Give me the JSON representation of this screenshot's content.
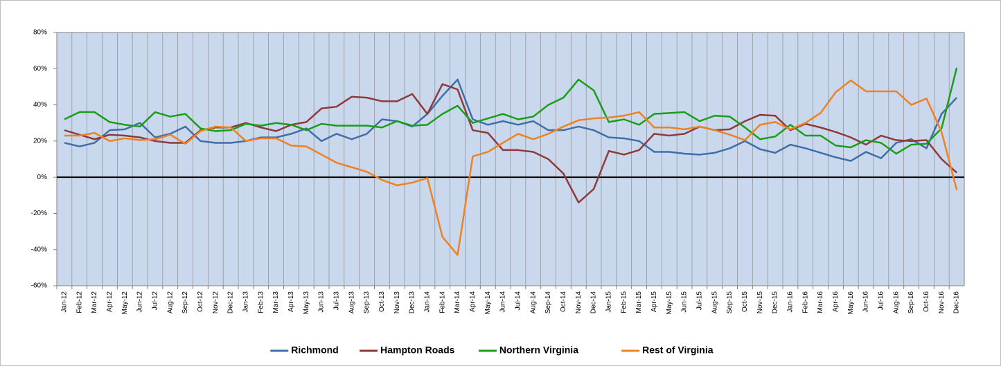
{
  "chart_data": {
    "type": "line",
    "categories": [
      "Jan-12",
      "Feb-12",
      "Mar-12",
      "Apr-12",
      "May-12",
      "Jun-12",
      "Jul-12",
      "Aug-12",
      "Sep-12",
      "Oct-12",
      "Nov-12",
      "Dec-12",
      "Jan-13",
      "Feb-13",
      "Mar-13",
      "Apr-13",
      "May-13",
      "Jun-13",
      "Jul-13",
      "Aug-13",
      "Sep-13",
      "Oct-13",
      "Nov-13",
      "Dec-13",
      "Jan-14",
      "Feb-14",
      "Mar-14",
      "Apr-14",
      "May-14",
      "Jun-14",
      "Jul-14",
      "Aug-14",
      "Sep-14",
      "Oct-14",
      "Nov-14",
      "Dec-14",
      "Jan-15",
      "Feb-15",
      "Mar-15",
      "Apr-15",
      "May-15",
      "Jun-15",
      "Jul-15",
      "Aug-15",
      "Sep-15",
      "Oct-15",
      "Nov-15",
      "Dec-15",
      "Jan-16",
      "Feb-16",
      "Mar-16",
      "Apr-16",
      "May-16",
      "Jun-16",
      "Jul-16",
      "Aug-16",
      "Sep-16",
      "Oct-16",
      "Nov-16",
      "Dec-16"
    ],
    "series": [
      {
        "name": "Richmond",
        "color": "#3f6ea8",
        "values": [
          19,
          17,
          19,
          26,
          26.5,
          30,
          22,
          24,
          28,
          20,
          19,
          19,
          20,
          22,
          22,
          24,
          27,
          20,
          24,
          21,
          24,
          32,
          31,
          28,
          35,
          45,
          54,
          32,
          29,
          31,
          29,
          31,
          26,
          26,
          28,
          26,
          22,
          21.5,
          20,
          14,
          14,
          13,
          12.5,
          13.5,
          16,
          20,
          15.5,
          13.5,
          18,
          16,
          13.5,
          11,
          9,
          14,
          10.5,
          19,
          21,
          16,
          35,
          44
        ]
      },
      {
        "name": "Hampton Roads",
        "color": "#8e3a3a",
        "values": [
          26,
          23.5,
          21,
          23.5,
          23,
          22,
          20,
          19,
          19,
          26,
          27.5,
          27.5,
          30,
          27.5,
          25.5,
          29,
          30.5,
          38,
          39,
          44.5,
          44,
          42,
          42,
          46,
          35,
          51.5,
          48.5,
          26,
          24.5,
          15,
          15,
          14,
          10,
          2,
          -14,
          -6.5,
          14.5,
          12.5,
          15,
          24,
          23,
          24,
          28,
          26,
          26.5,
          31,
          34.5,
          34,
          26,
          29.5,
          27.5,
          25,
          22,
          18,
          23,
          20.5,
          20,
          20.5,
          10,
          2.5
        ]
      },
      {
        "name": "Northern Virginia",
        "color": "#1a9e1a",
        "values": [
          32,
          36,
          36,
          30.5,
          29,
          28,
          36,
          33.5,
          35,
          27,
          25.5,
          26,
          29.5,
          28.5,
          30,
          29,
          26,
          29.5,
          28.5,
          28.5,
          28.5,
          27.5,
          31,
          28.5,
          29,
          35,
          39.5,
          30,
          32.5,
          35,
          32,
          33.5,
          40,
          44,
          54,
          48,
          30.5,
          32,
          29,
          35,
          35.5,
          36,
          31,
          34,
          33.5,
          27.5,
          21,
          22.5,
          29,
          23,
          23,
          17.5,
          16.5,
          20.5,
          19,
          13,
          18,
          18.5,
          27,
          60.5
        ]
      },
      {
        "name": "Rest of Virginia",
        "color": "#ee8122",
        "values": [
          23,
          23,
          24.5,
          20,
          21.5,
          20.5,
          21,
          23.5,
          18.5,
          25.5,
          28,
          27.5,
          20,
          21.5,
          21.5,
          17.5,
          17,
          12.5,
          8,
          5.5,
          3,
          -1.5,
          -4.5,
          -3,
          -0.5,
          -33,
          -43,
          11.5,
          14,
          19,
          24,
          21,
          24,
          28,
          31.5,
          32.5,
          33,
          34,
          36,
          27.5,
          27.5,
          26.5,
          28,
          26,
          23.5,
          20.5,
          29,
          30.5,
          26.5,
          30,
          35.5,
          47,
          53.5,
          47.5,
          47.5,
          47.5,
          40,
          43.5,
          25,
          -7
        ]
      }
    ],
    "ylim": [
      -60,
      80
    ],
    "yticks": [
      {
        "value": -60,
        "label": "-60%"
      },
      {
        "value": -40,
        "label": "-40%"
      },
      {
        "value": -20,
        "label": "-20%"
      },
      {
        "value": 0,
        "label": "0%"
      },
      {
        "value": 20,
        "label": "20%"
      },
      {
        "value": 40,
        "label": "40%"
      },
      {
        "value": 60,
        "label": "60%"
      },
      {
        "value": 80,
        "label": "80%"
      }
    ],
    "legend": "bottom"
  }
}
